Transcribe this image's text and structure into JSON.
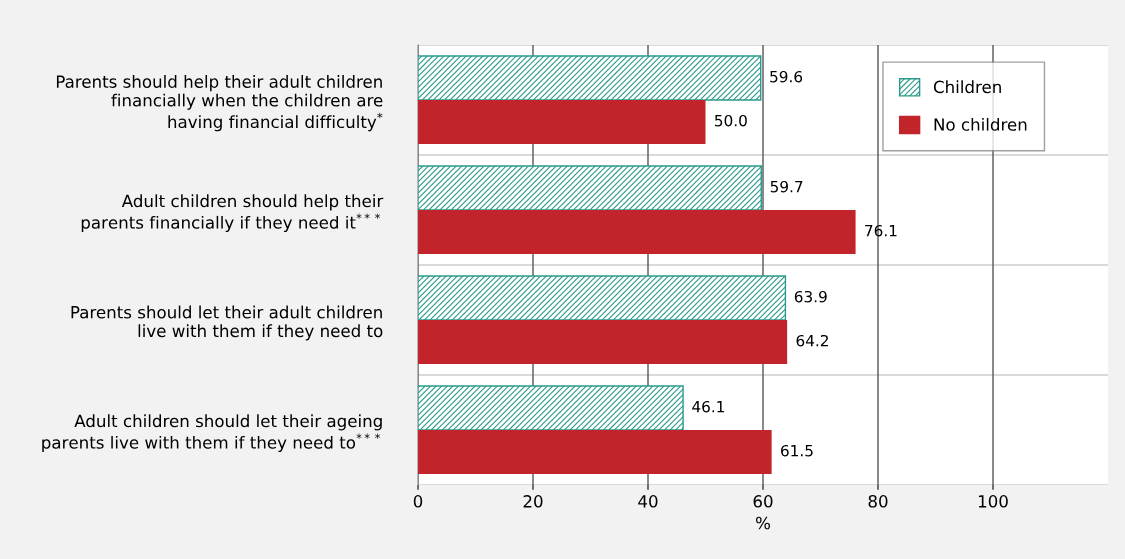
{
  "chart_data": {
    "type": "bar",
    "orientation": "horizontal",
    "xlabel": "%",
    "categories": [
      "Parents should help their adult children\nfinancially when the children are\nhaving financial difficulty$^{*}$",
      "Adult children should help their\nparents financially if they need it$^{***}$",
      "Parents should let their adult children\nlive with them if they need to",
      "Adult children should let their ageing\nparents live with them if they need to$^{***}$"
    ],
    "series": [
      {
        "name": "Children",
        "color": "#2a9a8a",
        "values": [
          59.6,
          59.7,
          63.9,
          46.1
        ],
        "value_labels": [
          "59.6",
          "59.7",
          "63.9",
          "46.1"
        ]
      },
      {
        "name": "No children",
        "color": "#c1252b",
        "values": [
          50.0,
          76.1,
          64.2,
          61.5
        ],
        "value_labels": [
          "50.0",
          "76.1",
          "64.2",
          "61.5"
        ]
      }
    ],
    "xlim": [
      0,
      120
    ],
    "xticks": [
      0,
      20,
      40,
      60,
      80,
      100
    ],
    "grid": "x",
    "legend": "top right"
  }
}
